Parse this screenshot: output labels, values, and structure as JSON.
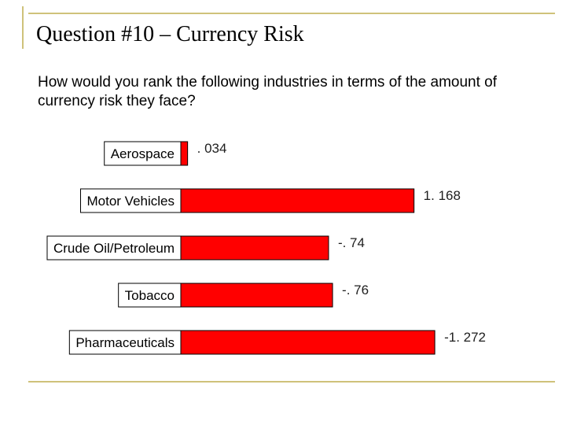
{
  "slide": {
    "title": "Question #10 – Currency Risk",
    "question": "How would you rank the following industries in terms of the amount of currency risk they face?",
    "accent_color": "#cfc27a"
  },
  "chart_data": {
    "type": "bar",
    "orientation": "horizontal",
    "categories": [
      "Aerospace",
      "Motor Vehicles",
      "Crude Oil/Petroleum",
      "Tobacco",
      "Pharmaceuticals"
    ],
    "values": [
      0.034,
      1.168,
      -0.74,
      -0.76,
      -1.272
    ],
    "value_labels": [
      ". 034",
      "1. 168",
      "-. 74",
      "-. 76",
      "-1. 272"
    ],
    "bar_length": "absolute value",
    "bar_color": "#ff0000",
    "grid": false,
    "legend": "none"
  }
}
